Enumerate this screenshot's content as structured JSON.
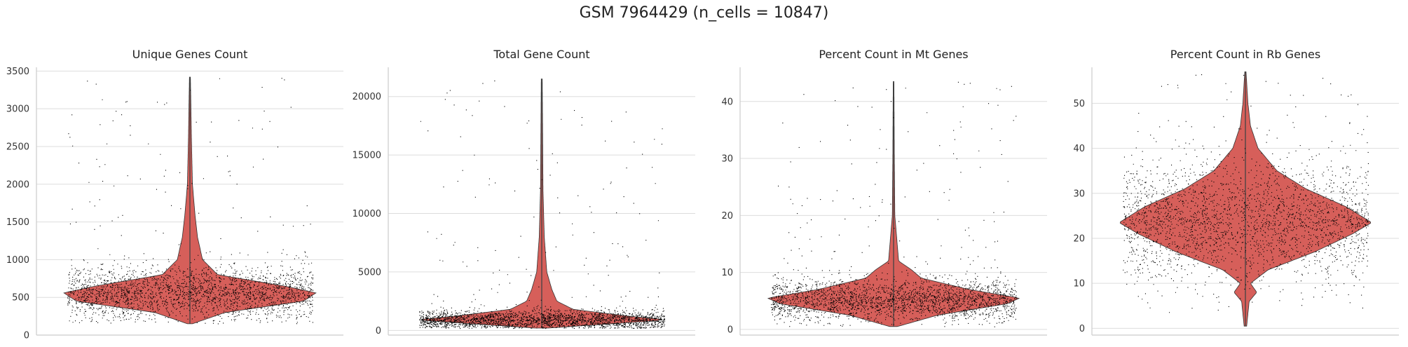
{
  "figure_title": "GSM 7964429 (n_cells = 10847)",
  "colors": {
    "violin": "#d65f5a",
    "points": "#000000",
    "grid": "#dddddd",
    "axis": "#cccccc"
  },
  "chart_data": [
    {
      "type": "violin",
      "title": "Unique Genes Count",
      "ylim": [
        0,
        3550
      ],
      "yticks": [
        0,
        500,
        1000,
        1500,
        2000,
        2500,
        3000,
        3500
      ],
      "grid": true,
      "n_points": 10847,
      "distribution": {
        "median": 560,
        "iqr": [
          440,
          680
        ],
        "min": 150,
        "max": 3420
      },
      "violin_profile": [
        [
          150,
          0.02
        ],
        [
          300,
          0.28
        ],
        [
          450,
          0.9
        ],
        [
          560,
          1.0
        ],
        [
          650,
          0.75
        ],
        [
          800,
          0.22
        ],
        [
          1000,
          0.1
        ],
        [
          1300,
          0.06
        ],
        [
          1600,
          0.04
        ],
        [
          2000,
          0.02
        ],
        [
          2600,
          0.012
        ],
        [
          3420,
          0.004
        ]
      ]
    },
    {
      "type": "violin",
      "title": "Total Gene Count",
      "ylim": [
        -400,
        22500
      ],
      "yticks": [
        0,
        5000,
        10000,
        15000,
        20000
      ],
      "grid": true,
      "n_points": 10847,
      "distribution": {
        "median": 900,
        "iqr": [
          650,
          1200
        ],
        "min": 200,
        "max": 21500
      },
      "violin_profile": [
        [
          200,
          0.05
        ],
        [
          600,
          0.6
        ],
        [
          900,
          1.0
        ],
        [
          1200,
          0.7
        ],
        [
          1800,
          0.25
        ],
        [
          2500,
          0.12
        ],
        [
          3500,
          0.08
        ],
        [
          5000,
          0.04
        ],
        [
          8000,
          0.02
        ],
        [
          12000,
          0.01
        ],
        [
          21500,
          0.004
        ]
      ]
    },
    {
      "type": "violin",
      "title": "Percent Count in Mt Genes",
      "ylim": [
        -1,
        46
      ],
      "yticks": [
        0,
        10,
        20,
        30,
        40
      ],
      "grid": true,
      "n_points": 10847,
      "distribution": {
        "median": 5.2,
        "iqr": [
          4.0,
          6.5
        ],
        "min": 0.5,
        "max": 43.5
      },
      "violin_profile": [
        [
          0.5,
          0.03
        ],
        [
          2.5,
          0.35
        ],
        [
          4.5,
          0.9
        ],
        [
          5.5,
          1.0
        ],
        [
          7,
          0.6
        ],
        [
          9,
          0.22
        ],
        [
          10.5,
          0.14
        ],
        [
          12,
          0.04
        ],
        [
          20,
          0.01
        ],
        [
          30,
          0.006
        ],
        [
          43.5,
          0.003
        ]
      ]
    },
    {
      "type": "violin",
      "title": "Percent Count in Rb Genes",
      "ylim": [
        -1.5,
        58
      ],
      "yticks": [
        0,
        10,
        20,
        30,
        40,
        50
      ],
      "grid": true,
      "n_points": 10847,
      "distribution": {
        "median": 23.5,
        "iqr": [
          19,
          28
        ],
        "min": 0.5,
        "max": 57
      },
      "violin_profile": [
        [
          0.5,
          0.01
        ],
        [
          6,
          0.03
        ],
        [
          8,
          0.09
        ],
        [
          10,
          0.04
        ],
        [
          13,
          0.18
        ],
        [
          17,
          0.55
        ],
        [
          21,
          0.85
        ],
        [
          23.5,
          1.0
        ],
        [
          27,
          0.8
        ],
        [
          31,
          0.48
        ],
        [
          35,
          0.25
        ],
        [
          40,
          0.1
        ],
        [
          45,
          0.04
        ],
        [
          50,
          0.02
        ],
        [
          57,
          0.005
        ]
      ]
    }
  ]
}
